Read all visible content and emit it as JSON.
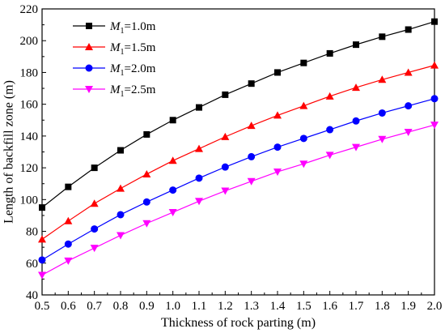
{
  "chart_data": {
    "type": "line",
    "title": "",
    "xlabel": "Thickness of rock parting (m)",
    "ylabel": "Length of backfill zone (m)",
    "xlim": [
      0.5,
      2.0
    ],
    "ylim": [
      40,
      220
    ],
    "x_ticks": [
      "0.5",
      "0.6",
      "0.7",
      "0.8",
      "0.9",
      "1.0",
      "1.1",
      "1.2",
      "1.3",
      "1.4",
      "1.5",
      "1.6",
      "1.7",
      "1.8",
      "1.9",
      "2.0"
    ],
    "y_ticks": [
      "40",
      "60",
      "80",
      "100",
      "120",
      "140",
      "160",
      "180",
      "200",
      "220"
    ],
    "x": [
      0.5,
      0.6,
      0.7,
      0.8,
      0.9,
      1.0,
      1.1,
      1.2,
      1.3,
      1.4,
      1.5,
      1.6,
      1.7,
      1.8,
      1.9,
      2.0
    ],
    "grid": false,
    "legend_position": "top-left",
    "series": [
      {
        "legend_var": "M",
        "legend_sub": "1",
        "legend_value": "=1.0m",
        "marker": "square",
        "color": "#000000",
        "values": [
          95,
          108,
          120,
          131,
          141,
          150,
          158,
          166,
          173,
          180,
          186,
          192,
          197.5,
          202.5,
          207,
          212
        ]
      },
      {
        "legend_var": "M",
        "legend_sub": "1",
        "legend_value": "=1.5m",
        "marker": "triangle-up",
        "color": "#ff0000",
        "values": [
          75,
          86.5,
          97.5,
          107,
          116,
          124.5,
          132,
          139.5,
          146.5,
          153,
          159,
          165,
          170.5,
          175.5,
          180,
          184.5
        ]
      },
      {
        "legend_var": "M",
        "legend_sub": "1",
        "legend_value": "=2.0m",
        "marker": "circle",
        "color": "#0000ff",
        "values": [
          62,
          72,
          81.5,
          90.5,
          98.5,
          106,
          113.5,
          120.5,
          127,
          133,
          138.5,
          144,
          149.5,
          154.5,
          159,
          163.5
        ]
      },
      {
        "legend_var": "M",
        "legend_sub": "1",
        "legend_value": "=2.5m",
        "marker": "triangle-down",
        "color": "#ff00ff",
        "values": [
          52.5,
          61.5,
          69.5,
          77.5,
          85,
          92,
          99,
          105.5,
          111.5,
          117.5,
          122.5,
          128,
          133,
          138,
          142.5,
          147
        ]
      }
    ]
  }
}
